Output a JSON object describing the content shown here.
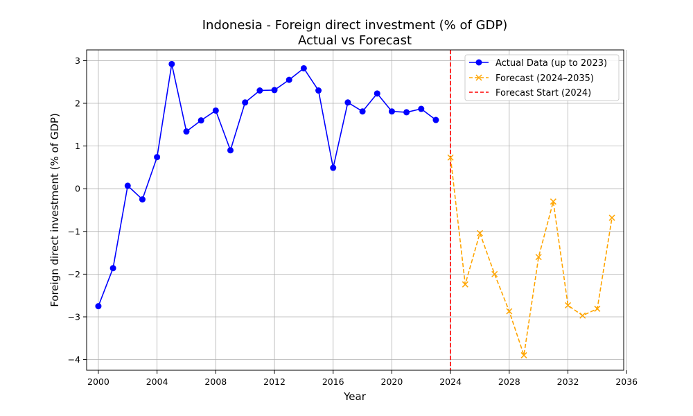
{
  "chart_data": {
    "type": "line",
    "title": "Indonesia - Foreign direct investment (% of GDP)",
    "subtitle": "Actual vs Forecast",
    "xlabel": "Year",
    "ylabel": "Foreign direct investment (% of GDP)",
    "xlim": [
      1999.2,
      2035.8
    ],
    "ylim": [
      -4.25,
      3.25
    ],
    "xticks": [
      2000,
      2004,
      2008,
      2012,
      2016,
      2020,
      2024,
      2028,
      2032,
      2036
    ],
    "yticks": [
      -4,
      -3,
      -2,
      -1,
      0,
      1,
      2,
      3
    ],
    "grid": true,
    "legend_position": "top-right",
    "series": [
      {
        "name": "Actual Data (up to 2023)",
        "color": "#0000ff",
        "style": "solid",
        "marker": "circle",
        "x": [
          2000,
          2001,
          2002,
          2003,
          2004,
          2005,
          2006,
          2007,
          2008,
          2009,
          2010,
          2011,
          2012,
          2013,
          2014,
          2015,
          2016,
          2017,
          2018,
          2019,
          2020,
          2021,
          2022,
          2023
        ],
        "values": [
          -2.75,
          -1.86,
          0.07,
          -0.25,
          0.74,
          2.92,
          1.34,
          1.6,
          1.83,
          0.9,
          2.02,
          2.3,
          2.31,
          2.55,
          2.82,
          2.3,
          0.49,
          2.02,
          1.81,
          2.23,
          1.81,
          1.79,
          1.87,
          1.61
        ]
      },
      {
        "name": "Forecast (2024–2035)",
        "color": "#ffa500",
        "style": "dashed",
        "marker": "x",
        "x": [
          2024,
          2025,
          2026,
          2027,
          2028,
          2029,
          2030,
          2031,
          2032,
          2033,
          2034,
          2035
        ],
        "values": [
          0.73,
          -2.24,
          -1.04,
          -2.0,
          -2.87,
          -3.9,
          -1.6,
          -0.3,
          -2.73,
          -2.97,
          -2.81,
          -0.68
        ]
      }
    ],
    "vline": {
      "name": "Forecast Start (2024)",
      "x": 2024,
      "color": "#ff0000",
      "style": "dashed"
    }
  }
}
